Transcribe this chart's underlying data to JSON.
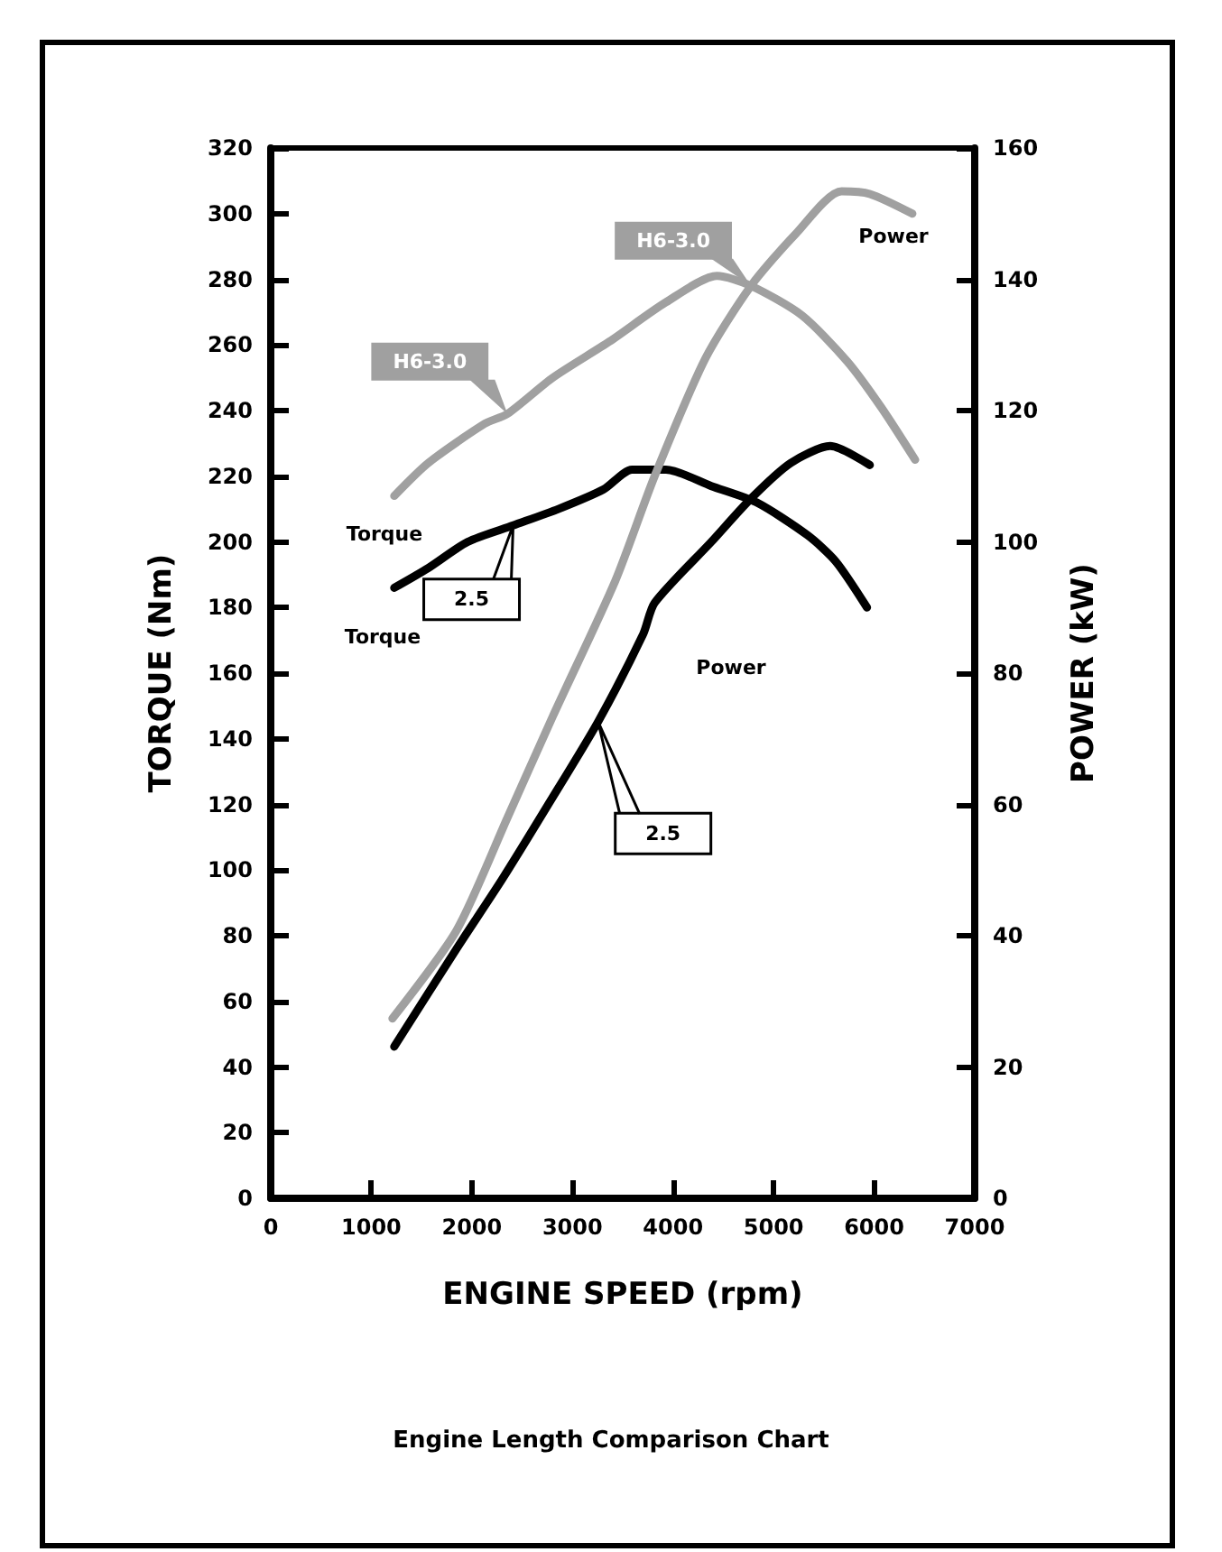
{
  "chart_data": {
    "type": "line",
    "title": "Engine Length Comparison Chart",
    "xlabel": "ENGINE SPEED (rpm)",
    "ylabel": "TORQUE (Nm)",
    "y2label": "POWER (kW)",
    "xlim": [
      0,
      7000
    ],
    "xticks": [
      0,
      1000,
      2000,
      3000,
      4000,
      5000,
      6000,
      7000
    ],
    "ylim": [
      0,
      320
    ],
    "yticks": [
      0,
      20,
      40,
      60,
      80,
      100,
      120,
      140,
      160,
      180,
      200,
      220,
      240,
      260,
      280,
      300,
      320
    ],
    "y2lim": [
      0,
      160
    ],
    "y2ticks": [
      0,
      20,
      40,
      60,
      80,
      100,
      120,
      140,
      160
    ],
    "grid": false,
    "marker": "none",
    "line_style": "solid",
    "series": [
      {
        "color": "#a0a0a0",
        "x": [
          1228,
          1565,
          2128,
          2354,
          2804,
          3367,
          3930,
          4437,
          4775,
          5282,
          5732,
          6070,
          6408
        ],
        "values": [
          214,
          224,
          236,
          239,
          250,
          261,
          273,
          281,
          278,
          269,
          255,
          241,
          225
        ]
      },
      {
        "color": "#000000",
        "x": [
          1228,
          1565,
          1959,
          2410,
          2860,
          3311,
          3592,
          3930,
          4381,
          4831,
          5338,
          5619,
          5929
        ],
        "values": [
          186,
          192,
          200,
          205,
          210,
          216,
          222,
          222,
          217,
          212,
          202,
          194,
          180
        ]
      },
      {
        "color": "#a0a0a0",
        "axis": "y2",
        "x": [
          1210,
          1847,
          2354,
          2804,
          3424,
          3817,
          4324,
          4775,
          5225,
          5676,
          5957,
          6380
        ],
        "values": [
          27.4,
          40.8,
          58,
          73.4,
          94,
          110,
          128,
          139,
          147,
          153.4,
          153,
          150
        ]
      },
      {
        "color": "#000000",
        "axis": "y2",
        "x": [
          1228,
          1847,
          2297,
          2748,
          3255,
          3705,
          3817,
          4381,
          4775,
          5169,
          5563,
          5957
        ],
        "values": [
          23.1,
          38,
          48.5,
          59.7,
          72.6,
          86,
          90.7,
          100,
          106.6,
          112,
          114.6,
          111.7
        ]
      }
    ],
    "annotations": [
      "H6-3.0",
      "H6-3.0",
      "Power",
      "Torque",
      "Torque",
      "2.5",
      "Power",
      "2.5"
    ]
  }
}
